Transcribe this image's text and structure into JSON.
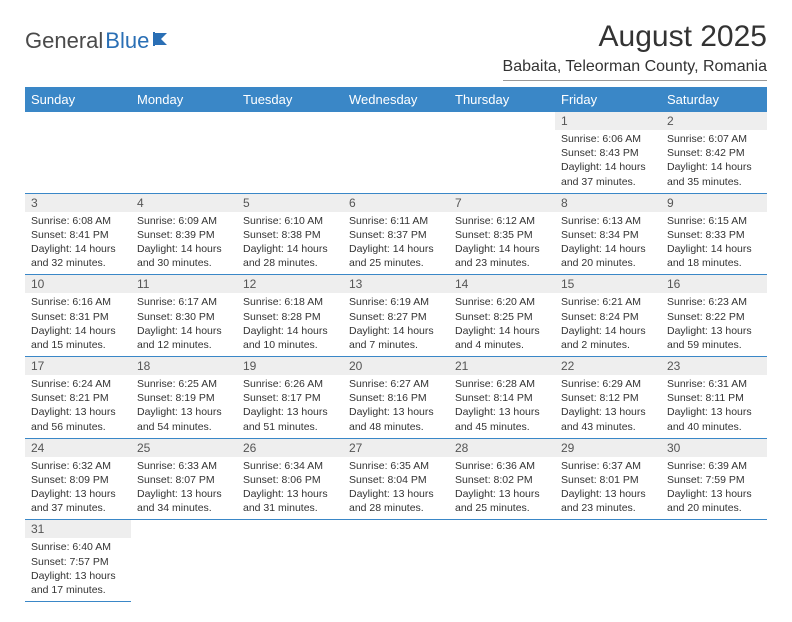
{
  "brand": {
    "part1": "General",
    "part2": "Blue"
  },
  "title": "August 2025",
  "location": "Babaita, Teleorman County, Romania",
  "colors": {
    "header_bg": "#3a87c7",
    "header_text": "#ffffff",
    "daynum_bg": "#eeeeee",
    "border": "#3a87c7",
    "brand_gray": "#4a4a4a",
    "brand_blue": "#2a6fb5"
  },
  "weekdays": [
    "Sunday",
    "Monday",
    "Tuesday",
    "Wednesday",
    "Thursday",
    "Friday",
    "Saturday"
  ],
  "weeks": [
    [
      null,
      null,
      null,
      null,
      null,
      {
        "n": "1",
        "sr": "Sunrise: 6:06 AM",
        "ss": "Sunset: 8:43 PM",
        "dl": "Daylight: 14 hours and 37 minutes."
      },
      {
        "n": "2",
        "sr": "Sunrise: 6:07 AM",
        "ss": "Sunset: 8:42 PM",
        "dl": "Daylight: 14 hours and 35 minutes."
      }
    ],
    [
      {
        "n": "3",
        "sr": "Sunrise: 6:08 AM",
        "ss": "Sunset: 8:41 PM",
        "dl": "Daylight: 14 hours and 32 minutes."
      },
      {
        "n": "4",
        "sr": "Sunrise: 6:09 AM",
        "ss": "Sunset: 8:39 PM",
        "dl": "Daylight: 14 hours and 30 minutes."
      },
      {
        "n": "5",
        "sr": "Sunrise: 6:10 AM",
        "ss": "Sunset: 8:38 PM",
        "dl": "Daylight: 14 hours and 28 minutes."
      },
      {
        "n": "6",
        "sr": "Sunrise: 6:11 AM",
        "ss": "Sunset: 8:37 PM",
        "dl": "Daylight: 14 hours and 25 minutes."
      },
      {
        "n": "7",
        "sr": "Sunrise: 6:12 AM",
        "ss": "Sunset: 8:35 PM",
        "dl": "Daylight: 14 hours and 23 minutes."
      },
      {
        "n": "8",
        "sr": "Sunrise: 6:13 AM",
        "ss": "Sunset: 8:34 PM",
        "dl": "Daylight: 14 hours and 20 minutes."
      },
      {
        "n": "9",
        "sr": "Sunrise: 6:15 AM",
        "ss": "Sunset: 8:33 PM",
        "dl": "Daylight: 14 hours and 18 minutes."
      }
    ],
    [
      {
        "n": "10",
        "sr": "Sunrise: 6:16 AM",
        "ss": "Sunset: 8:31 PM",
        "dl": "Daylight: 14 hours and 15 minutes."
      },
      {
        "n": "11",
        "sr": "Sunrise: 6:17 AM",
        "ss": "Sunset: 8:30 PM",
        "dl": "Daylight: 14 hours and 12 minutes."
      },
      {
        "n": "12",
        "sr": "Sunrise: 6:18 AM",
        "ss": "Sunset: 8:28 PM",
        "dl": "Daylight: 14 hours and 10 minutes."
      },
      {
        "n": "13",
        "sr": "Sunrise: 6:19 AM",
        "ss": "Sunset: 8:27 PM",
        "dl": "Daylight: 14 hours and 7 minutes."
      },
      {
        "n": "14",
        "sr": "Sunrise: 6:20 AM",
        "ss": "Sunset: 8:25 PM",
        "dl": "Daylight: 14 hours and 4 minutes."
      },
      {
        "n": "15",
        "sr": "Sunrise: 6:21 AM",
        "ss": "Sunset: 8:24 PM",
        "dl": "Daylight: 14 hours and 2 minutes."
      },
      {
        "n": "16",
        "sr": "Sunrise: 6:23 AM",
        "ss": "Sunset: 8:22 PM",
        "dl": "Daylight: 13 hours and 59 minutes."
      }
    ],
    [
      {
        "n": "17",
        "sr": "Sunrise: 6:24 AM",
        "ss": "Sunset: 8:21 PM",
        "dl": "Daylight: 13 hours and 56 minutes."
      },
      {
        "n": "18",
        "sr": "Sunrise: 6:25 AM",
        "ss": "Sunset: 8:19 PM",
        "dl": "Daylight: 13 hours and 54 minutes."
      },
      {
        "n": "19",
        "sr": "Sunrise: 6:26 AM",
        "ss": "Sunset: 8:17 PM",
        "dl": "Daylight: 13 hours and 51 minutes."
      },
      {
        "n": "20",
        "sr": "Sunrise: 6:27 AM",
        "ss": "Sunset: 8:16 PM",
        "dl": "Daylight: 13 hours and 48 minutes."
      },
      {
        "n": "21",
        "sr": "Sunrise: 6:28 AM",
        "ss": "Sunset: 8:14 PM",
        "dl": "Daylight: 13 hours and 45 minutes."
      },
      {
        "n": "22",
        "sr": "Sunrise: 6:29 AM",
        "ss": "Sunset: 8:12 PM",
        "dl": "Daylight: 13 hours and 43 minutes."
      },
      {
        "n": "23",
        "sr": "Sunrise: 6:31 AM",
        "ss": "Sunset: 8:11 PM",
        "dl": "Daylight: 13 hours and 40 minutes."
      }
    ],
    [
      {
        "n": "24",
        "sr": "Sunrise: 6:32 AM",
        "ss": "Sunset: 8:09 PM",
        "dl": "Daylight: 13 hours and 37 minutes."
      },
      {
        "n": "25",
        "sr": "Sunrise: 6:33 AM",
        "ss": "Sunset: 8:07 PM",
        "dl": "Daylight: 13 hours and 34 minutes."
      },
      {
        "n": "26",
        "sr": "Sunrise: 6:34 AM",
        "ss": "Sunset: 8:06 PM",
        "dl": "Daylight: 13 hours and 31 minutes."
      },
      {
        "n": "27",
        "sr": "Sunrise: 6:35 AM",
        "ss": "Sunset: 8:04 PM",
        "dl": "Daylight: 13 hours and 28 minutes."
      },
      {
        "n": "28",
        "sr": "Sunrise: 6:36 AM",
        "ss": "Sunset: 8:02 PM",
        "dl": "Daylight: 13 hours and 25 minutes."
      },
      {
        "n": "29",
        "sr": "Sunrise: 6:37 AM",
        "ss": "Sunset: 8:01 PM",
        "dl": "Daylight: 13 hours and 23 minutes."
      },
      {
        "n": "30",
        "sr": "Sunrise: 6:39 AM",
        "ss": "Sunset: 7:59 PM",
        "dl": "Daylight: 13 hours and 20 minutes."
      }
    ],
    [
      {
        "n": "31",
        "sr": "Sunrise: 6:40 AM",
        "ss": "Sunset: 7:57 PM",
        "dl": "Daylight: 13 hours and 17 minutes."
      },
      null,
      null,
      null,
      null,
      null,
      null
    ]
  ]
}
